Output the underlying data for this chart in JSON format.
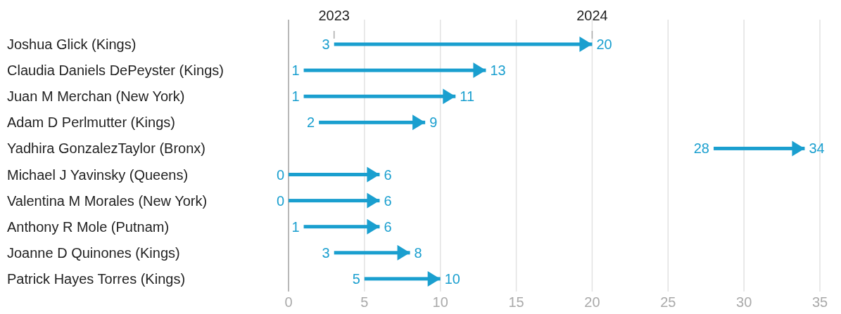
{
  "chart_data": {
    "type": "bar",
    "orientation": "horizontal",
    "categories": [
      "Joshua Glick (Kings)",
      "Claudia Daniels DePeyster (Kings)",
      "Juan M Merchan (New York)",
      "Adam D Perlmutter (Kings)",
      "Yadhira GonzalezTaylor (Bronx)",
      "Michael J Yavinsky (Queens)",
      "Valentina M Morales (New York)",
      "Anthony R Mole (Putnam)",
      "Joanne D Quinones (Kings)",
      "Patrick Hayes Torres (Kings)"
    ],
    "base": [
      3,
      1,
      1,
      2,
      28,
      0,
      0,
      1,
      3,
      5
    ],
    "values": [
      17,
      12,
      10,
      7,
      6,
      6,
      6,
      5,
      5,
      5
    ],
    "value_labels": [
      "20",
      "13",
      "11",
      "9",
      "34",
      "6",
      "6",
      "6",
      "8",
      "10"
    ],
    "color": "#1a9fcf",
    "xlim": [
      0,
      35
    ],
    "xticks": [
      0,
      5,
      10,
      15,
      20,
      25,
      30,
      35
    ],
    "grid": "x",
    "annotations": [
      "2023",
      "2024",
      {
        "text": "3",
        "x": 3,
        "y": "Joshua Glick (Kings)"
      },
      {
        "text": "1",
        "x": 1,
        "y": "Claudia Daniels DePeyster (Kings)"
      },
      {
        "text": "1",
        "x": 1,
        "y": "Juan M Merchan (New York)"
      },
      {
        "text": "2",
        "x": 2,
        "y": "Adam D Perlmutter (Kings)"
      },
      {
        "text": "28",
        "x": 28,
        "y": "Yadhira GonzalezTaylor (Bronx)"
      },
      {
        "text": "0",
        "x": 0,
        "y": "Michael J Yavinsky (Queens)"
      },
      {
        "text": "0",
        "x": 0,
        "y": "Valentina M Morales (New York)"
      },
      {
        "text": "1",
        "x": 1,
        "y": "Anthony R Mole (Putnam)"
      },
      {
        "text": "3",
        "x": 3,
        "y": "Joanne D Quinones (Kings)"
      },
      {
        "text": "5",
        "x": 5,
        "y": "Patrick Hayes Torres (Kings)"
      }
    ]
  }
}
